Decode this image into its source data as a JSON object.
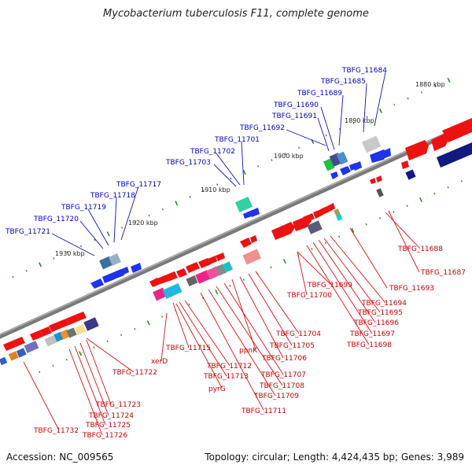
{
  "title": "Mycobacterium tuberculosis F11, complete genome",
  "footer": {
    "accession": "Accession: NC_009565",
    "topology": "Topology: circular; Length: 4,424,435 bp; Genes: 3,989"
  },
  "kbp_ticks": [
    {
      "label": "1880 kbp"
    },
    {
      "label": "1890 kbp"
    },
    {
      "label": "1900 kbp"
    },
    {
      "label": "1910 kbp"
    },
    {
      "label": "1920 kbp"
    },
    {
      "label": "1930 kbp"
    }
  ],
  "upper_labels": [
    "TBFG_11684",
    "TBFG_11685",
    "TBFG_11689",
    "TBFG_11690",
    "TBFG_11691",
    "TBFG_11692",
    "TBFG_11701",
    "TBFG_11702",
    "TBFG_11703",
    "TBFG_11717",
    "TBFG_11718",
    "TBFG_11719",
    "TBFG_11720",
    "TBFG_11721"
  ],
  "lower_labels": [
    "TBFG_11688",
    "TBFG_11687",
    "TBFG_11693",
    "TBFG_11699",
    "TBFG_11700",
    "TBFG_11694",
    "TBFG_11695",
    "TBFG_11696",
    "TBFG_11697",
    "TBFG_11698",
    "TBFG_11704",
    "TBFG_11705",
    "TBFG_11706",
    "ppnK",
    "TBFG_11707",
    "TBFG_11708",
    "TBFG_11709",
    "TBFG_11711",
    "xerD",
    "TBFG_11715",
    "TBFG_11712",
    "TBFG_11713",
    "pyrG",
    "TBFG_11722",
    "TBFG_11723",
    "TBFG_11724",
    "TBFG_11725",
    "TBFG_11726",
    "TBFG_11732"
  ],
  "colors": {
    "upper_label": "#0000cc",
    "lower_label": "#cc0000",
    "backbone": "#7a7a7a",
    "tick": "#2e8b2e",
    "red_gene": "#ee1111",
    "blue_gene": "#1122ee"
  }
}
